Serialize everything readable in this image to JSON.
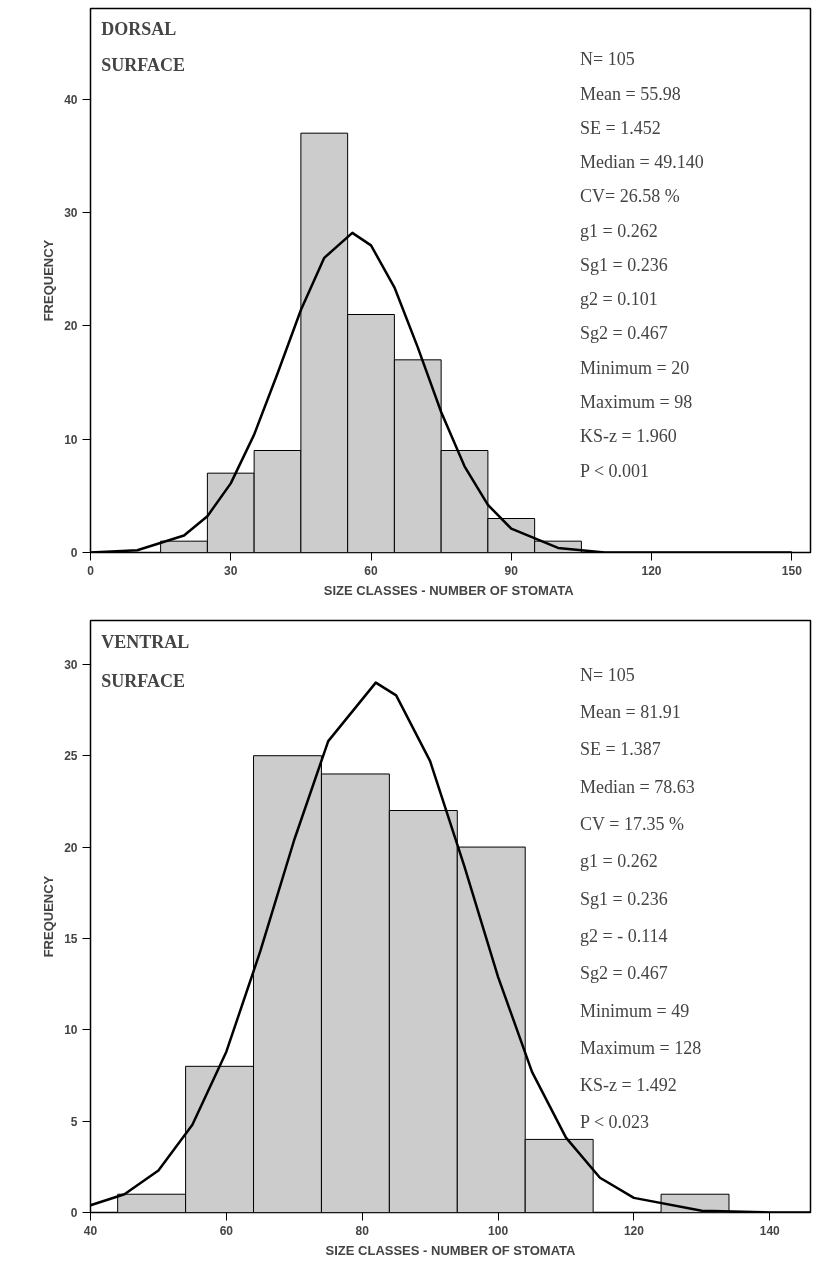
{
  "chart_data": [
    {
      "type": "histogram",
      "title": "DORSAL SURFACE",
      "xlabel": "SIZE CLASSES -  NUMBER OF STOMATA",
      "ylabel": "FREQUENCY",
      "bins": [
        15,
        25,
        35,
        45,
        55,
        65,
        75,
        85,
        95,
        105
      ],
      "values": [
        1,
        7,
        9,
        37,
        21,
        17,
        9,
        3,
        1
      ],
      "color": "#cccccc",
      "series": [
        {
          "type": "line",
          "color": "#000000",
          "x": [
            0,
            10,
            20,
            25,
            30,
            35,
            40,
            45,
            50,
            56,
            60,
            65,
            70,
            75,
            80,
            85,
            90,
            100,
            110,
            120,
            150
          ],
          "values": [
            0,
            0.2,
            1.5,
            3.2,
            6.1,
            10.4,
            15.8,
            21.4,
            26.0,
            28.2,
            27.1,
            23.4,
            18.1,
            12.4,
            7.6,
            4.2,
            2.1,
            0.4,
            0,
            0,
            0
          ]
        }
      ],
      "xlim": [
        0,
        154
      ],
      "xticks": [
        0,
        30,
        60,
        90,
        120,
        150
      ],
      "ylim": [
        0,
        48
      ],
      "yticks": [
        0,
        10,
        20,
        30,
        40
      ],
      "grid": false,
      "annotations": [
        "N= 105",
        "Mean = 55.98",
        "SE = 1.452",
        "Median = 49.140",
        "CV= 26.58 %",
        "g1 = 0.262",
        "Sg1 = 0.236",
        "g2 = 0.101",
        "Sg2 = 0.467",
        "Minimum = 20",
        "Maximum = 98",
        "KS-z = 1.960",
        "P < 0.001"
      ]
    },
    {
      "type": "histogram",
      "title": "VENTRAL SURFACE",
      "xlabel": "SIZE CLASSES - NUMBER OF STOMATA",
      "ylabel": "FREQUENCY",
      "bins": [
        44,
        54,
        64,
        74,
        84,
        94,
        104,
        114,
        124,
        134
      ],
      "values": [
        1,
        8,
        25,
        24,
        22,
        20,
        4,
        0,
        1
      ],
      "color": "#cccccc",
      "series": [
        {
          "type": "line",
          "color": "#000000",
          "x": [
            40,
            45,
            50,
            55,
            60,
            65,
            70,
            75,
            82,
            85,
            90,
            95,
            100,
            105,
            110,
            115,
            120,
            130,
            140,
            146
          ],
          "values": [
            0.4,
            1.0,
            2.3,
            4.8,
            8.8,
            14.3,
            20.4,
            25.8,
            29.0,
            28.3,
            24.7,
            19.0,
            12.9,
            7.7,
            4.1,
            1.9,
            0.8,
            0.1,
            0,
            0
          ]
        }
      ],
      "xlim": [
        40,
        146
      ],
      "xticks": [
        40,
        60,
        80,
        100,
        120,
        140
      ],
      "ylim": [
        0,
        32.4
      ],
      "yticks": [
        0,
        5,
        10,
        15,
        20,
        25,
        30
      ],
      "grid": false,
      "annotations": [
        "N= 105",
        "Mean = 81.91",
        "SE = 1.387",
        "Median = 78.63",
        "CV = 17.35 %",
        "g1 = 0.262",
        "Sg1 = 0.236",
        "g2 = - 0.114",
        " Sg2 = 0.467",
        "Minimum = 49",
        "Maximum = 128",
        "KS-z = 1.492",
        "P < 0.023"
      ]
    }
  ]
}
